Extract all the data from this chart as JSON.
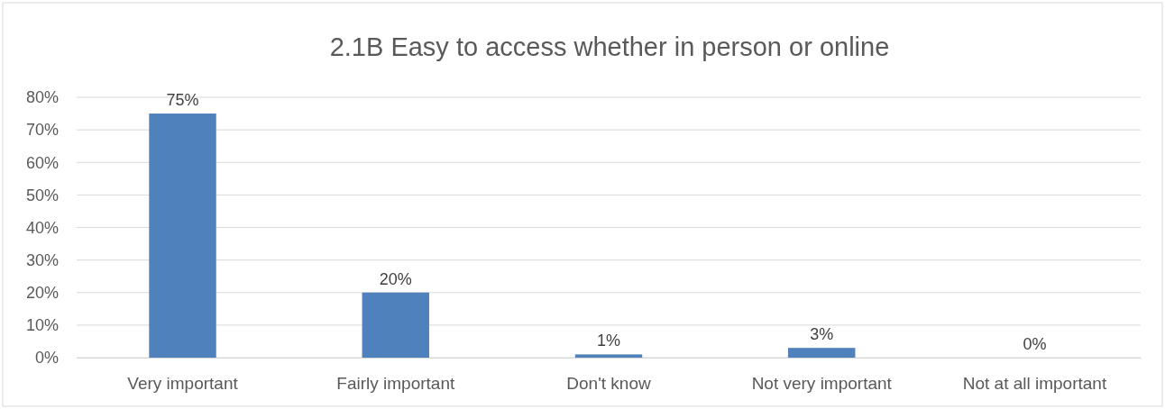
{
  "chart_data": {
    "type": "bar",
    "title": "2.1B Easy to access whether in person or online",
    "categories": [
      "Very important",
      "Fairly important",
      "Don't know",
      "Not very important",
      "Not at all important"
    ],
    "values": [
      75,
      20,
      1,
      3,
      0
    ],
    "value_labels": [
      "75%",
      "20%",
      "1%",
      "3%",
      "0%"
    ],
    "color": "#4f81bd",
    "ylim": [
      0,
      80
    ],
    "yticks": [
      {
        "value": 0,
        "label": "0%"
      },
      {
        "value": 10,
        "label": "10%"
      },
      {
        "value": 20,
        "label": "20%"
      },
      {
        "value": 30,
        "label": "30%"
      },
      {
        "value": 40,
        "label": "40%"
      },
      {
        "value": 50,
        "label": "50%"
      },
      {
        "value": 60,
        "label": "60%"
      },
      {
        "value": 70,
        "label": "70%"
      },
      {
        "value": 80,
        "label": "80%"
      }
    ],
    "grid": "y"
  }
}
